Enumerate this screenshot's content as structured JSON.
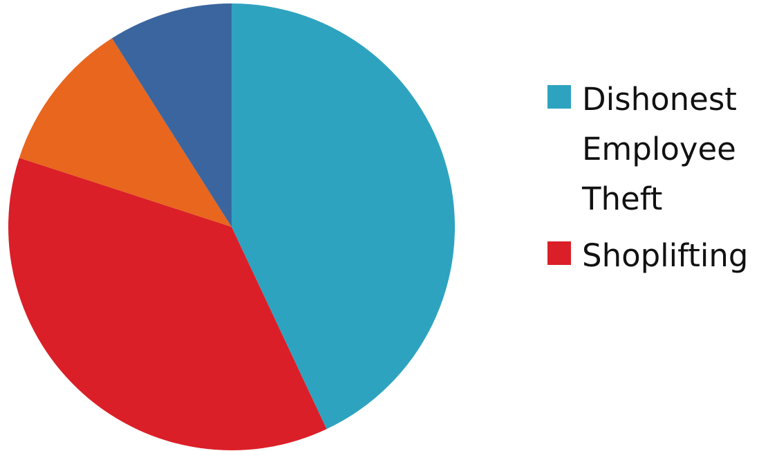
{
  "chart_data": {
    "type": "pie",
    "title": "",
    "slices": [
      {
        "label": "Dishonest Employee Theft",
        "value": 43,
        "color": "#2ea3c0"
      },
      {
        "label": "Shoplifting",
        "value": 37,
        "color": "#da1f28"
      },
      {
        "label": "",
        "value": 11,
        "color": "#e9661e"
      },
      {
        "label": "",
        "value": 9,
        "color": "#3b659e"
      }
    ],
    "legend": {
      "placement": "right",
      "entries": [
        {
          "label": "Dishonest Employee Theft",
          "color": "#2ea3c0"
        },
        {
          "label": "Shoplifting",
          "color": "#da1f28"
        }
      ]
    }
  }
}
